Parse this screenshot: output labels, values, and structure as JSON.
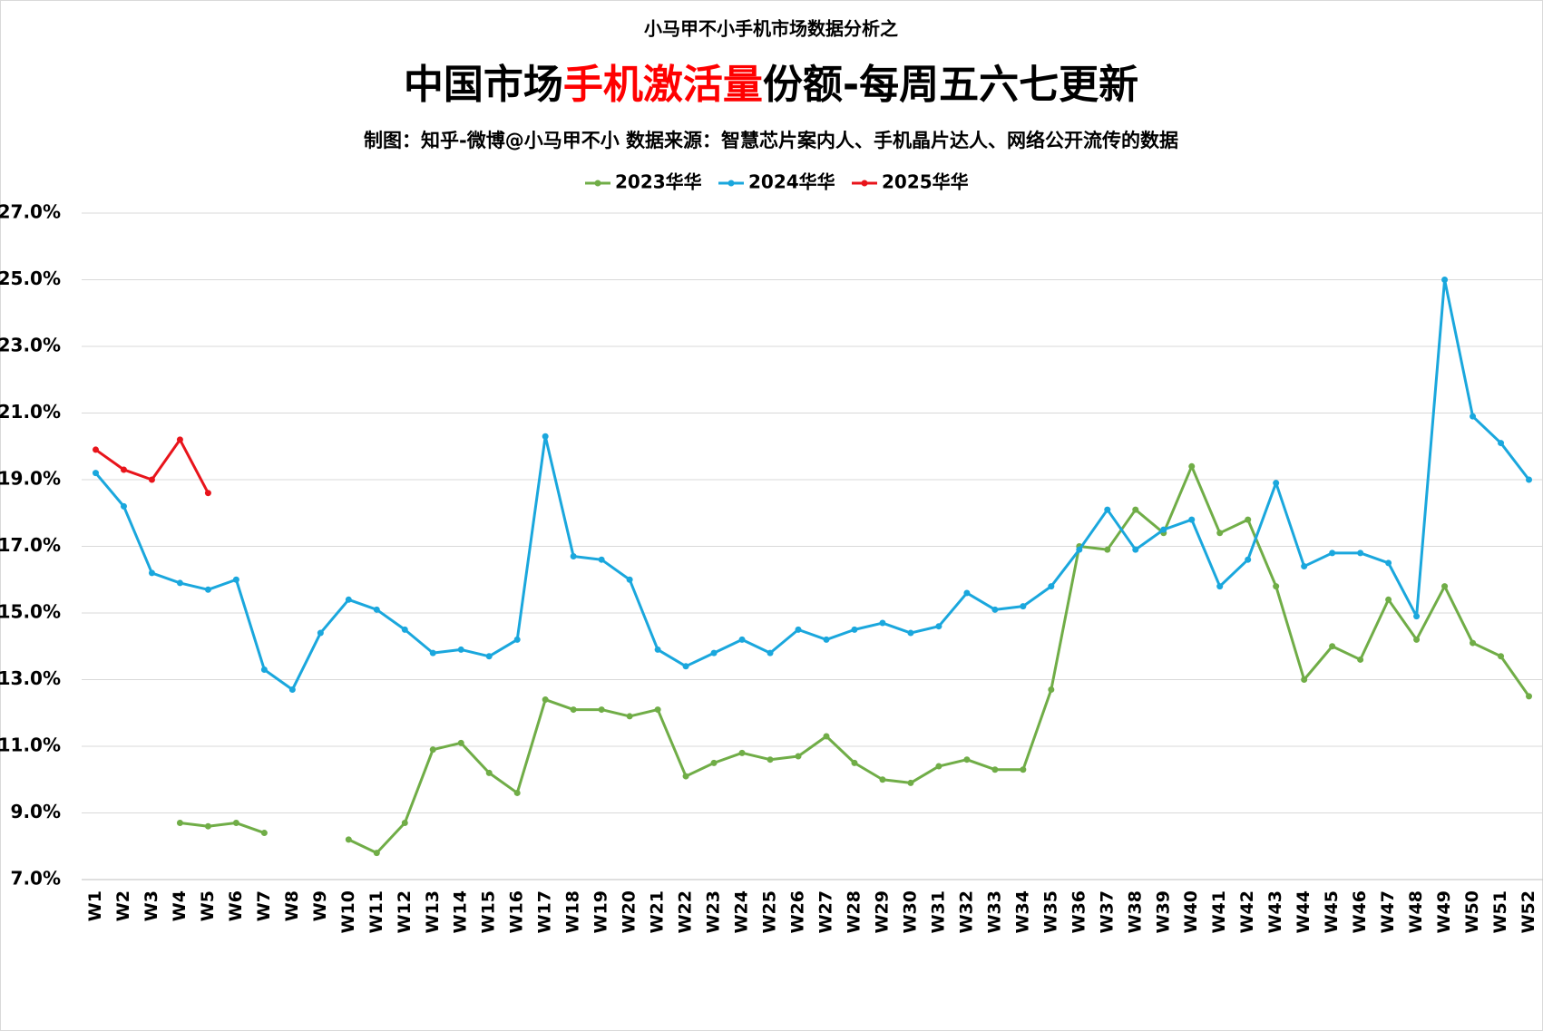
{
  "chart_data": {
    "type": "line",
    "supertitle": "小马甲不小手机市场数据分析之",
    "title_segments": [
      {
        "text": "中国市场",
        "color": "#000000"
      },
      {
        "text": "手机激活量",
        "color": "#ff0000"
      },
      {
        "text": "份额-每周五六七更新",
        "color": "#000000"
      }
    ],
    "subtitle": "制图：知乎-微博@小马甲不小  数据来源：智慧芯片案内人、手机晶片达人、网络公开流传的数据",
    "legend": "top",
    "grid": true,
    "categories": [
      "W1",
      "W2",
      "W3",
      "W4",
      "W5",
      "W6",
      "W7",
      "W8",
      "W9",
      "W10",
      "W11",
      "W12",
      "W13",
      "W14",
      "W15",
      "W16",
      "W17",
      "W18",
      "W19",
      "W20",
      "W21",
      "W22",
      "W23",
      "W24",
      "W25",
      "W26",
      "W27",
      "W28",
      "W29",
      "W30",
      "W31",
      "W32",
      "W33",
      "W34",
      "W35",
      "W36",
      "W37",
      "W38",
      "W39",
      "W40",
      "W41",
      "W42",
      "W43",
      "W44",
      "W45",
      "W46",
      "W47",
      "W48",
      "W49",
      "W50",
      "W51",
      "W52"
    ],
    "series": [
      {
        "name": "2023华华",
        "color": "#70ad47",
        "values": [
          null,
          null,
          null,
          8.7,
          8.6,
          8.7,
          8.4,
          null,
          null,
          8.2,
          7.8,
          8.7,
          10.9,
          11.1,
          10.2,
          9.6,
          12.4,
          12.1,
          12.1,
          11.9,
          12.1,
          10.1,
          10.5,
          10.8,
          10.6,
          10.7,
          11.3,
          10.5,
          10.0,
          9.9,
          10.4,
          10.6,
          10.3,
          10.3,
          12.7,
          17.0,
          16.9,
          18.1,
          17.4,
          19.4,
          17.4,
          17.8,
          15.8,
          13.0,
          14.0,
          13.6,
          15.4,
          14.2,
          15.8,
          14.1,
          13.7,
          12.5
        ]
      },
      {
        "name": "2024华华",
        "color": "#1aa7dd",
        "values": [
          19.2,
          18.2,
          16.2,
          15.9,
          15.7,
          16.0,
          13.3,
          12.7,
          14.4,
          15.4,
          15.1,
          14.5,
          13.8,
          13.9,
          13.7,
          14.2,
          20.3,
          16.7,
          16.6,
          16.0,
          13.9,
          13.4,
          13.8,
          14.2,
          13.8,
          14.5,
          14.2,
          14.5,
          14.7,
          14.4,
          14.6,
          15.6,
          15.1,
          15.2,
          15.8,
          16.9,
          18.1,
          16.9,
          17.5,
          17.8,
          15.8,
          16.6,
          18.9,
          16.4,
          16.8,
          16.8,
          16.5,
          14.9,
          25.0,
          20.9,
          20.1,
          19.0
        ]
      },
      {
        "name": "2025华华",
        "color": "#e8141b",
        "values": [
          19.9,
          19.3,
          19.0,
          20.2,
          18.6,
          null,
          null,
          null,
          null,
          null,
          null,
          null,
          null,
          null,
          null,
          null,
          null,
          null,
          null,
          null,
          null,
          null,
          null,
          null,
          null,
          null,
          null,
          null,
          null,
          null,
          null,
          null,
          null,
          null,
          null,
          null,
          null,
          null,
          null,
          null,
          null,
          null,
          null,
          null,
          null,
          null,
          null,
          null,
          null,
          null,
          null,
          null
        ]
      }
    ],
    "ylim": [
      7,
      27
    ],
    "yticks": [
      {
        "value": 7,
        "label": "7.0%"
      },
      {
        "value": 9,
        "label": "9.0%"
      },
      {
        "value": 11,
        "label": "11.0%"
      },
      {
        "value": 13,
        "label": "13.0%"
      },
      {
        "value": 15,
        "label": "15.0%"
      },
      {
        "value": 17,
        "label": "17.0%"
      },
      {
        "value": 19,
        "label": "19.0%"
      },
      {
        "value": 21,
        "label": "21.0%"
      },
      {
        "value": 23,
        "label": "23.0%"
      },
      {
        "value": 25,
        "label": "25.0%"
      },
      {
        "value": 27,
        "label": "27.0%"
      }
    ]
  }
}
